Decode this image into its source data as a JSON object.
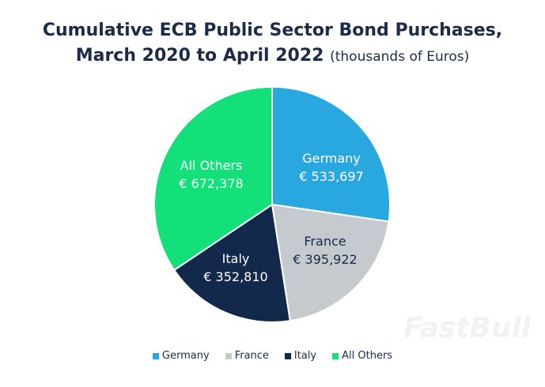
{
  "chart_data": {
    "type": "pie",
    "title_line1": "Cumulative ECB Public Sector Bond Purchases,",
    "title_line2": "March 2020 to April 2022",
    "subtitle": "(thousands of Euros)",
    "slices": [
      {
        "name": "Germany",
        "value": 533697,
        "label": "€ 533,697",
        "color": "#29a8e0",
        "text_color": "#ffffff"
      },
      {
        "name": "France",
        "value": 395922,
        "label": "€ 395,922",
        "color": "#c4cacd",
        "text_color": "#1b2b48"
      },
      {
        "name": "Italy",
        "value": 352810,
        "label": "€ 352,810",
        "color": "#13294b",
        "text_color": "#ffffff"
      },
      {
        "name": "All Others",
        "value": 672378,
        "label": "€ 672,378",
        "color": "#14e07a",
        "text_color": "#ffffff"
      }
    ],
    "start": "top",
    "direction": "clockwise",
    "legend_position": "bottom"
  },
  "watermark": "FastBull"
}
